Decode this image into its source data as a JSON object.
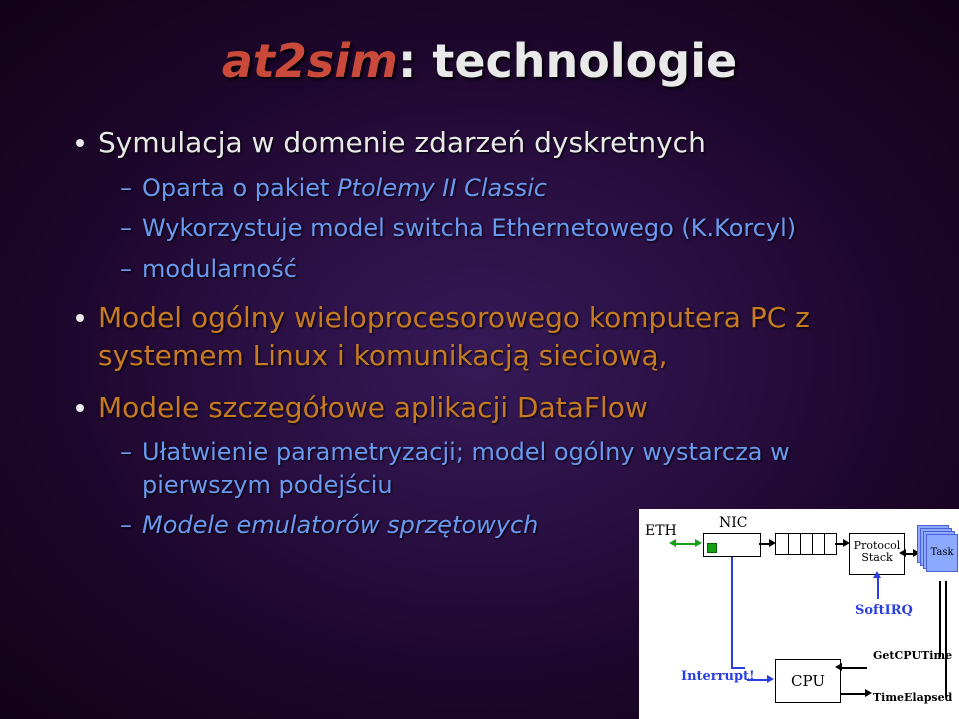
{
  "title": {
    "accent": "at2sim",
    "rest": ": technologie"
  },
  "bullets": [
    {
      "text": "Symulacja w domenie zdarzeń dyskretnych",
      "sub": [
        {
          "segments": [
            {
              "t": "Oparta o pakiet "
            },
            {
              "t": "Ptolemy II Classic",
              "ital": true
            }
          ]
        },
        {
          "segments": [
            {
              "t": "Wykorzystuje model switcha Ethernetowego (K.Korcyl)"
            }
          ]
        },
        {
          "segments": [
            {
              "t": "modularność"
            }
          ]
        }
      ]
    },
    {
      "text": "Model ogólny wieloprocesorowego komputera PC z systemem Linux i komunikacją sieciową,",
      "orange": true,
      "sub": []
    },
    {
      "text": "Modele szczegółowe aplikacji DataFlow",
      "orange": true,
      "sub": [
        {
          "segments": [
            {
              "t": "Ułatwienie parametryzacji; model ogólny wystarcza w pierwszym podejściu"
            }
          ]
        },
        {
          "segments": [
            {
              "t": "Modele emulatorów sprzętowych",
              "ital": true
            }
          ]
        }
      ]
    }
  ],
  "diagram": {
    "type": "flowchart",
    "background_color": "#ffffff",
    "text_color": "#000000",
    "accent_blue": "#2a3fe0",
    "accent_green": "#17a017",
    "task_fill": "#8aa9ff",
    "task_border": "#4c5fd8",
    "labels": {
      "eth": "ETH",
      "nic": "NIC",
      "pstack": "Protocol\nStack",
      "softirq": "SoftIRQ",
      "interrupt": "Interrupt!",
      "cpu": "CPU",
      "task": "Task",
      "getcpu": "GetCPUTime",
      "timeel": "TimeElapsed"
    },
    "queue_cells": 5,
    "task_count": 4
  }
}
